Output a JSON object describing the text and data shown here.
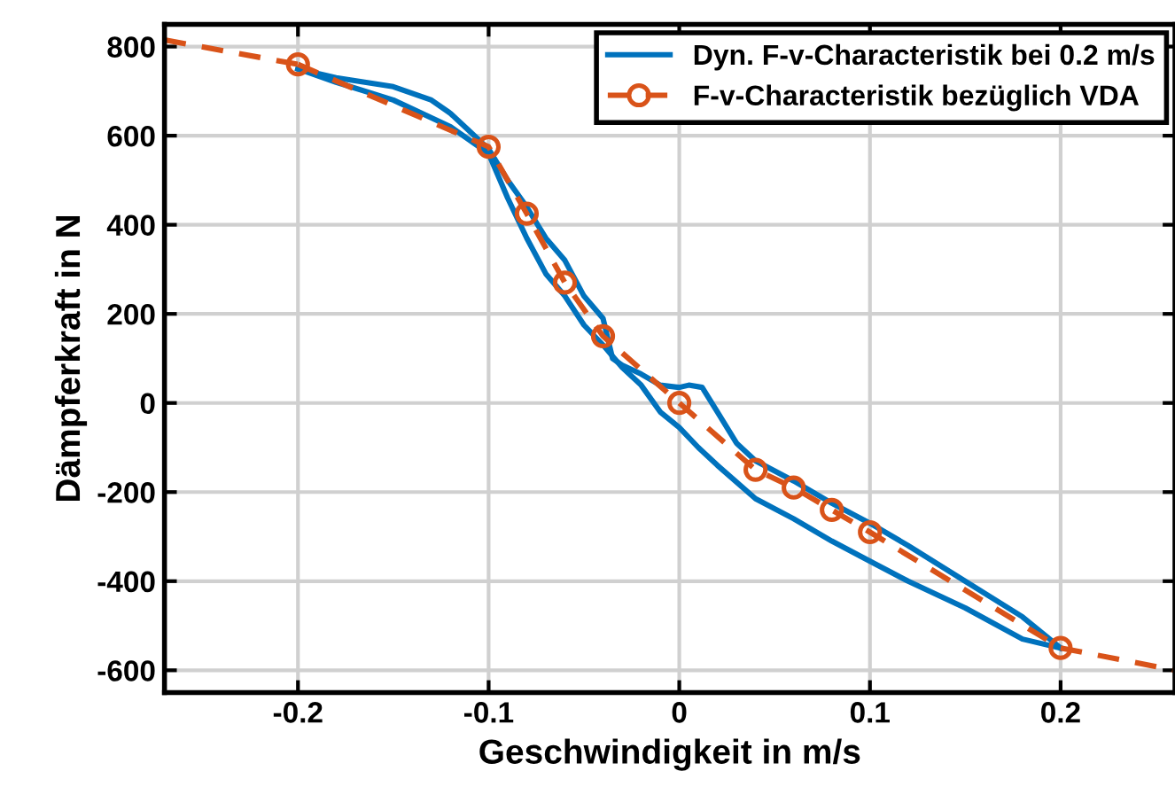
{
  "chart_data": {
    "type": "line",
    "xlabel": "Geschwindigkeit in m/s",
    "ylabel": "Dämpferkraft in N",
    "xlim": [
      -0.27,
      0.26
    ],
    "ylim": [
      -650,
      850
    ],
    "xticks": [
      -0.2,
      -0.1,
      0,
      0.1,
      0.2
    ],
    "yticks": [
      -600,
      -400,
      -200,
      0,
      200,
      400,
      600,
      800
    ],
    "grid": true,
    "legend": "top right",
    "series": [
      {
        "name": "Dyn. F-v-Characteristik bei 0.2 m/s",
        "color": "#0072bd",
        "marker": "none",
        "line_style": "solid",
        "x": [
          -0.2,
          -0.18,
          -0.15,
          -0.13,
          -0.12,
          -0.11,
          -0.1,
          -0.09,
          -0.08,
          -0.07,
          -0.06,
          -0.05,
          -0.04,
          -0.035,
          -0.03,
          -0.02,
          -0.01,
          0,
          0.005,
          0.012,
          0.02,
          0.03,
          0.04,
          0.06,
          0.08,
          0.1,
          0.12,
          0.15,
          0.18,
          0.2
        ],
        "values": [
          750,
          730,
          710,
          680,
          650,
          610,
          570,
          500,
          440,
          370,
          320,
          240,
          190,
          100,
          85,
          65,
          40,
          35,
          40,
          35,
          -20,
          -90,
          -130,
          -175,
          -225,
          -270,
          -320,
          -400,
          -480,
          -550
        ]
      },
      {
        "color": "#0072bd",
        "marker": "none",
        "line_style": "solid",
        "x": [
          0.2,
          0.18,
          0.15,
          0.12,
          0.1,
          0.08,
          0.06,
          0.04,
          0.02,
          0.01,
          0,
          -0.01,
          -0.02,
          -0.03,
          -0.04,
          -0.05,
          -0.06,
          -0.07,
          -0.08,
          -0.09,
          -0.1,
          -0.12,
          -0.15,
          -0.18,
          -0.2
        ],
        "values": [
          -550,
          -530,
          -460,
          -400,
          -355,
          -310,
          -260,
          -215,
          -140,
          -100,
          -55,
          -20,
          40,
          80,
          130,
          175,
          240,
          290,
          370,
          460,
          560,
          620,
          680,
          720,
          750
        ]
      },
      {
        "color": "#d95319",
        "line_style": "dashed",
        "x": [
          -0.27,
          -0.2
        ],
        "values": [
          815,
          760
        ]
      },
      {
        "color": "#d95319",
        "line_style": "dashed",
        "x": [
          0.2,
          0.26
        ],
        "values": [
          -550,
          -600
        ]
      },
      {
        "name": "F-v-Characteristik bezüglich VDA",
        "color": "#d95319",
        "marker": "circle",
        "line_style": "dashed",
        "x": [
          -0.2,
          -0.1,
          -0.08,
          -0.06,
          -0.04,
          0,
          0.04,
          0.06,
          0.08,
          0.1,
          0.2
        ],
        "values": [
          760,
          575,
          425,
          270,
          150,
          0,
          -150,
          -190,
          -240,
          -290,
          -550
        ]
      }
    ]
  }
}
